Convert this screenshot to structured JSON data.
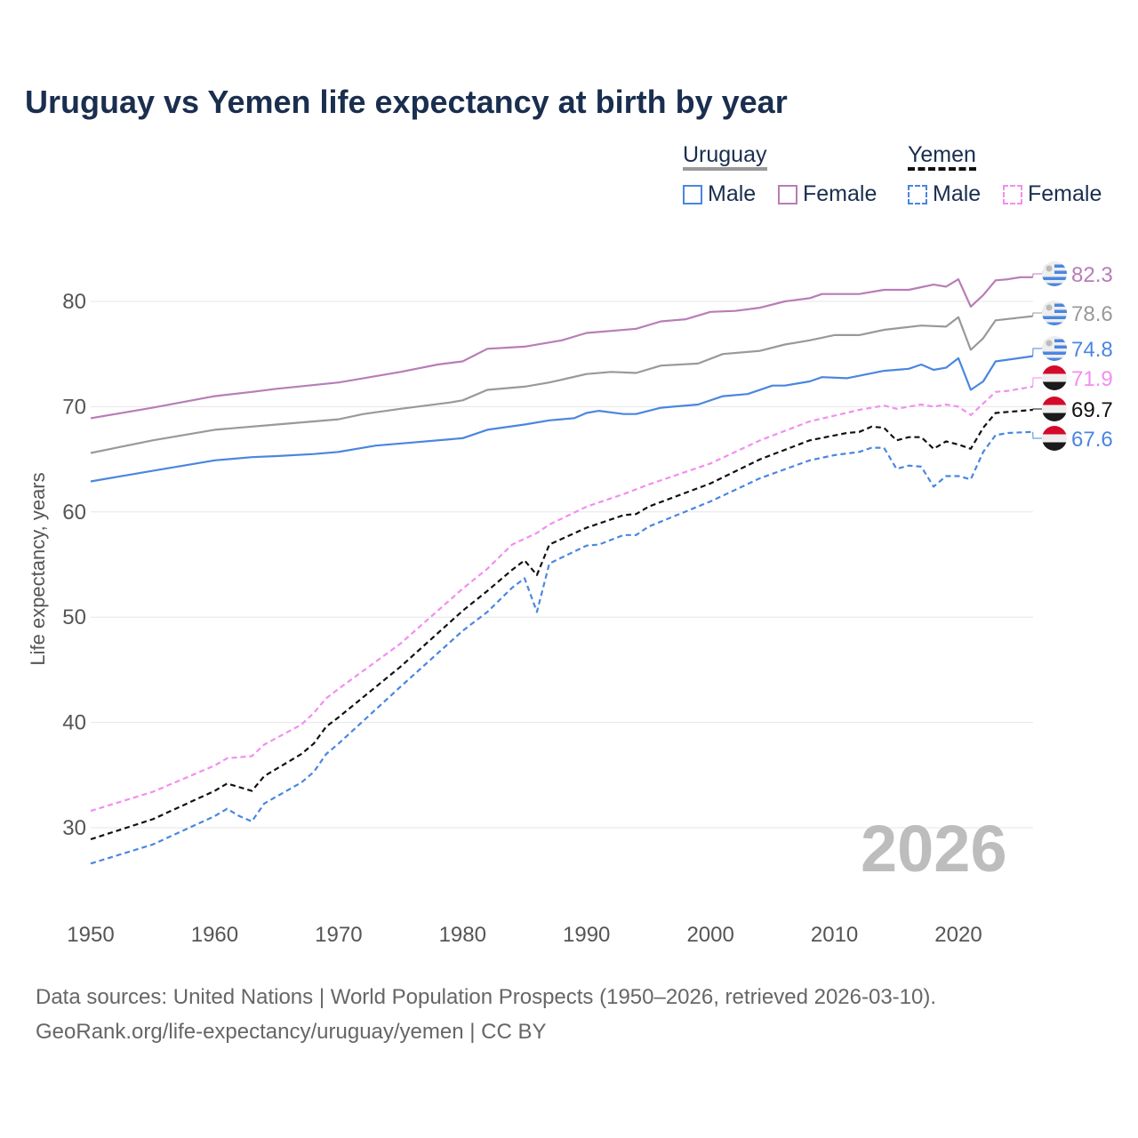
{
  "title": "Uruguay vs Yemen life expectancy at birth by year",
  "legend": {
    "groups": [
      {
        "name": "Uruguay",
        "items": [
          "Male",
          "Female"
        ]
      },
      {
        "name": "Yemen",
        "items": [
          "Male",
          "Female"
        ]
      }
    ]
  },
  "current_year": "2026",
  "source": {
    "line1": "Data sources: United Nations | World Population Prospects (1950–2026, retrieved 2026-03-10).",
    "line2": "GeoRank.org/life-expectancy/uruguay/yemen | CC BY"
  },
  "chart_data": {
    "type": "line",
    "title": "Uruguay vs Yemen life expectancy at birth by year",
    "xlabel": "",
    "ylabel": "Life expectancy, years",
    "xlim": [
      1950,
      2026
    ],
    "ylim": [
      22,
      87
    ],
    "xticks": [
      1950,
      1960,
      1970,
      1980,
      1990,
      2000,
      2010,
      2020
    ],
    "yticks": [
      30,
      40,
      50,
      60,
      70,
      80
    ],
    "grid": true,
    "legend_position": "top-right",
    "series": [
      {
        "name": "Uruguay Female",
        "country": "Uruguay",
        "color": "#b87db6",
        "dashed": false,
        "end_label": "82.3",
        "flag": "uruguay",
        "points": [
          [
            1950,
            68.9
          ],
          [
            1952,
            69.3
          ],
          [
            1955,
            69.9
          ],
          [
            1960,
            71.0
          ],
          [
            1963,
            71.4
          ],
          [
            1965,
            71.7
          ],
          [
            1970,
            72.3
          ],
          [
            1975,
            73.3
          ],
          [
            1978,
            74.0
          ],
          [
            1980,
            74.3
          ],
          [
            1982,
            75.5
          ],
          [
            1985,
            75.7
          ],
          [
            1988,
            76.3
          ],
          [
            1990,
            77.0
          ],
          [
            1992,
            77.2
          ],
          [
            1994,
            77.4
          ],
          [
            1996,
            78.1
          ],
          [
            1998,
            78.3
          ],
          [
            2000,
            79.0
          ],
          [
            2002,
            79.1
          ],
          [
            2004,
            79.4
          ],
          [
            2006,
            80.0
          ],
          [
            2008,
            80.3
          ],
          [
            2009,
            80.7
          ],
          [
            2012,
            80.7
          ],
          [
            2014,
            81.1
          ],
          [
            2016,
            81.1
          ],
          [
            2018,
            81.6
          ],
          [
            2019,
            81.4
          ],
          [
            2020,
            82.1
          ],
          [
            2021,
            79.5
          ],
          [
            2022,
            80.6
          ],
          [
            2023,
            82.0
          ],
          [
            2024,
            82.1
          ],
          [
            2025,
            82.3
          ],
          [
            2026,
            82.3
          ]
        ]
      },
      {
        "name": "Uruguay Total",
        "country": "Uruguay",
        "color": "#999999",
        "dashed": false,
        "end_label": "78.6",
        "flag": "uruguay",
        "points": [
          [
            1950,
            65.6
          ],
          [
            1955,
            66.8
          ],
          [
            1960,
            67.8
          ],
          [
            1965,
            68.3
          ],
          [
            1970,
            68.8
          ],
          [
            1972,
            69.3
          ],
          [
            1975,
            69.8
          ],
          [
            1979,
            70.4
          ],
          [
            1980,
            70.6
          ],
          [
            1982,
            71.6
          ],
          [
            1985,
            71.9
          ],
          [
            1987,
            72.3
          ],
          [
            1990,
            73.1
          ],
          [
            1992,
            73.3
          ],
          [
            1994,
            73.2
          ],
          [
            1996,
            73.9
          ],
          [
            1999,
            74.1
          ],
          [
            2001,
            75.0
          ],
          [
            2004,
            75.3
          ],
          [
            2006,
            75.9
          ],
          [
            2008,
            76.3
          ],
          [
            2010,
            76.8
          ],
          [
            2012,
            76.8
          ],
          [
            2014,
            77.3
          ],
          [
            2017,
            77.7
          ],
          [
            2019,
            77.6
          ],
          [
            2020,
            78.5
          ],
          [
            2021,
            75.4
          ],
          [
            2022,
            76.5
          ],
          [
            2023,
            78.2
          ],
          [
            2026,
            78.6
          ]
        ]
      },
      {
        "name": "Uruguay Male",
        "country": "Uruguay",
        "color": "#4a86e0",
        "dashed": false,
        "end_label": "74.8",
        "flag": "uruguay",
        "points": [
          [
            1950,
            62.9
          ],
          [
            1952,
            63.3
          ],
          [
            1955,
            63.9
          ],
          [
            1960,
            64.9
          ],
          [
            1963,
            65.2
          ],
          [
            1965,
            65.3
          ],
          [
            1968,
            65.5
          ],
          [
            1970,
            65.7
          ],
          [
            1973,
            66.3
          ],
          [
            1976,
            66.6
          ],
          [
            1980,
            67.0
          ],
          [
            1982,
            67.8
          ],
          [
            1985,
            68.3
          ],
          [
            1987,
            68.7
          ],
          [
            1989,
            68.9
          ],
          [
            1990,
            69.4
          ],
          [
            1991,
            69.6
          ],
          [
            1993,
            69.3
          ],
          [
            1994,
            69.3
          ],
          [
            1996,
            69.9
          ],
          [
            1999,
            70.2
          ],
          [
            2001,
            71.0
          ],
          [
            2003,
            71.2
          ],
          [
            2005,
            72.0
          ],
          [
            2006,
            72.0
          ],
          [
            2008,
            72.4
          ],
          [
            2009,
            72.8
          ],
          [
            2011,
            72.7
          ],
          [
            2014,
            73.4
          ],
          [
            2016,
            73.6
          ],
          [
            2017,
            74.0
          ],
          [
            2018,
            73.5
          ],
          [
            2019,
            73.7
          ],
          [
            2020,
            74.6
          ],
          [
            2021,
            71.6
          ],
          [
            2022,
            72.4
          ],
          [
            2023,
            74.3
          ],
          [
            2026,
            74.8
          ]
        ]
      },
      {
        "name": "Yemen Female",
        "country": "Yemen",
        "color": "#f28ef0",
        "dashed": true,
        "end_label": "71.9",
        "flag": "yemen",
        "points": [
          [
            1950,
            31.6
          ],
          [
            1955,
            33.4
          ],
          [
            1960,
            35.9
          ],
          [
            1961,
            36.6
          ],
          [
            1963,
            36.8
          ],
          [
            1964,
            37.9
          ],
          [
            1967,
            39.8
          ],
          [
            1968,
            40.9
          ],
          [
            1969,
            42.3
          ],
          [
            1970,
            43.2
          ],
          [
            1975,
            47.5
          ],
          [
            1980,
            52.7
          ],
          [
            1982,
            54.6
          ],
          [
            1984,
            56.9
          ],
          [
            1986,
            58.0
          ],
          [
            1987,
            58.8
          ],
          [
            1990,
            60.5
          ],
          [
            1993,
            61.7
          ],
          [
            1995,
            62.6
          ],
          [
            2000,
            64.6
          ],
          [
            2004,
            66.8
          ],
          [
            2008,
            68.6
          ],
          [
            2012,
            69.7
          ],
          [
            2014,
            70.1
          ],
          [
            2015,
            69.8
          ],
          [
            2017,
            70.2
          ],
          [
            2018,
            70.0
          ],
          [
            2019,
            70.2
          ],
          [
            2020,
            70.0
          ],
          [
            2021,
            69.2
          ],
          [
            2022,
            70.3
          ],
          [
            2023,
            71.4
          ],
          [
            2024,
            71.5
          ],
          [
            2026,
            71.9
          ]
        ]
      },
      {
        "name": "Yemen Total",
        "country": "Yemen",
        "color": "#111111",
        "dashed": true,
        "end_label": "69.7",
        "flag": "yemen",
        "points": [
          [
            1950,
            28.9
          ],
          [
            1955,
            30.8
          ],
          [
            1960,
            33.5
          ],
          [
            1961,
            34.2
          ],
          [
            1963,
            33.5
          ],
          [
            1964,
            34.9
          ],
          [
            1967,
            37.0
          ],
          [
            1968,
            38.0
          ],
          [
            1969,
            39.6
          ],
          [
            1970,
            40.5
          ],
          [
            1975,
            45.3
          ],
          [
            1980,
            50.6
          ],
          [
            1982,
            52.5
          ],
          [
            1984,
            54.5
          ],
          [
            1985,
            55.4
          ],
          [
            1986,
            54.0
          ],
          [
            1987,
            56.9
          ],
          [
            1990,
            58.5
          ],
          [
            1993,
            59.7
          ],
          [
            1994,
            59.8
          ],
          [
            1995,
            60.5
          ],
          [
            2000,
            62.7
          ],
          [
            2004,
            65.0
          ],
          [
            2008,
            66.8
          ],
          [
            2011,
            67.5
          ],
          [
            2012,
            67.6
          ],
          [
            2013,
            68.1
          ],
          [
            2014,
            68.0
          ],
          [
            2015,
            66.8
          ],
          [
            2016,
            67.1
          ],
          [
            2017,
            67.1
          ],
          [
            2018,
            66.0
          ],
          [
            2019,
            66.7
          ],
          [
            2020,
            66.4
          ],
          [
            2021,
            66.0
          ],
          [
            2022,
            68.0
          ],
          [
            2023,
            69.4
          ],
          [
            2024,
            69.5
          ],
          [
            2026,
            69.7
          ]
        ]
      },
      {
        "name": "Yemen Male",
        "country": "Yemen",
        "color": "#4a86e0",
        "dashed": true,
        "end_label": "67.6",
        "flag": "yemen",
        "points": [
          [
            1950,
            26.6
          ],
          [
            1955,
            28.4
          ],
          [
            1960,
            31.1
          ],
          [
            1961,
            31.8
          ],
          [
            1962,
            31.1
          ],
          [
            1963,
            30.6
          ],
          [
            1964,
            32.3
          ],
          [
            1967,
            34.3
          ],
          [
            1968,
            35.3
          ],
          [
            1969,
            37.0
          ],
          [
            1970,
            38.0
          ],
          [
            1975,
            43.4
          ],
          [
            1980,
            48.7
          ],
          [
            1982,
            50.5
          ],
          [
            1984,
            52.8
          ],
          [
            1985,
            53.7
          ],
          [
            1986,
            50.5
          ],
          [
            1987,
            55.1
          ],
          [
            1990,
            56.8
          ],
          [
            1991,
            56.9
          ],
          [
            1993,
            57.8
          ],
          [
            1994,
            57.8
          ],
          [
            1995,
            58.6
          ],
          [
            2000,
            61.0
          ],
          [
            2004,
            63.2
          ],
          [
            2008,
            64.9
          ],
          [
            2010,
            65.4
          ],
          [
            2012,
            65.7
          ],
          [
            2013,
            66.1
          ],
          [
            2014,
            66.1
          ],
          [
            2015,
            64.1
          ],
          [
            2016,
            64.4
          ],
          [
            2017,
            64.3
          ],
          [
            2018,
            62.4
          ],
          [
            2019,
            63.4
          ],
          [
            2020,
            63.4
          ],
          [
            2021,
            63.1
          ],
          [
            2022,
            65.7
          ],
          [
            2023,
            67.3
          ],
          [
            2024,
            67.5
          ],
          [
            2026,
            67.6
          ]
        ]
      }
    ]
  }
}
